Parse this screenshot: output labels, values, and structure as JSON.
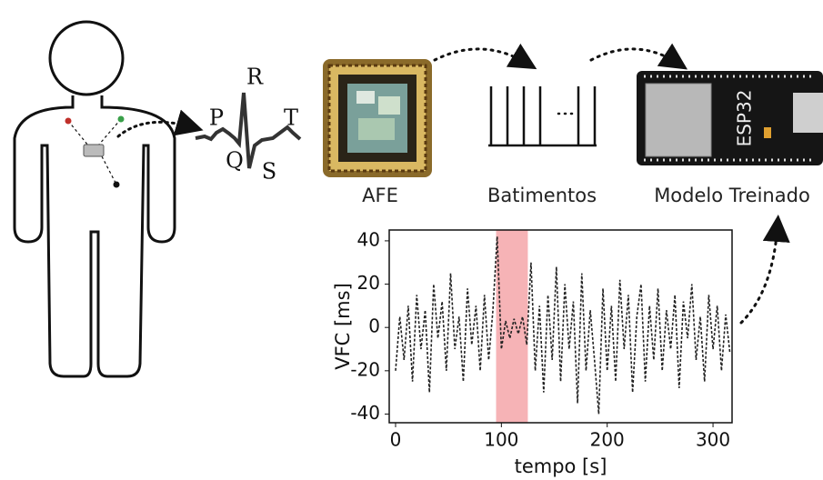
{
  "labels": {
    "afe": "AFE",
    "beats": "Batimentos",
    "model": "Modelo Treinado",
    "board": "ESP32"
  },
  "ecg_labels": {
    "r": "R",
    "p": "P",
    "q": "Q",
    "s": "S",
    "t": "T"
  },
  "chart_data": {
    "type": "line",
    "xlabel": "tempo [s]",
    "ylabel": "VFC [ms]",
    "x": [
      0,
      4,
      8,
      12,
      16,
      20,
      24,
      28,
      32,
      36,
      40,
      44,
      48,
      52,
      56,
      60,
      64,
      68,
      72,
      76,
      80,
      84,
      88,
      92,
      96,
      100,
      104,
      108,
      112,
      116,
      120,
      124,
      128,
      132,
      136,
      140,
      144,
      148,
      152,
      156,
      160,
      164,
      168,
      172,
      176,
      180,
      184,
      188,
      192,
      196,
      200,
      204,
      208,
      212,
      216,
      220,
      224,
      228,
      232,
      236,
      240,
      244,
      248,
      252,
      256,
      260,
      264,
      268,
      272,
      276,
      280,
      284,
      288,
      292,
      296,
      300,
      304,
      308,
      312,
      316
    ],
    "values": [
      -20,
      5,
      -15,
      10,
      -25,
      15,
      -10,
      8,
      -30,
      20,
      -5,
      12,
      -20,
      25,
      -10,
      5,
      -25,
      18,
      -8,
      10,
      -20,
      15,
      -15,
      8,
      42,
      -10,
      3,
      -5,
      4,
      -3,
      5,
      -8,
      30,
      -20,
      10,
      -30,
      15,
      -15,
      28,
      -25,
      20,
      -10,
      12,
      -35,
      25,
      -20,
      8,
      -15,
      -40,
      18,
      -20,
      10,
      -25,
      22,
      -10,
      15,
      -30,
      5,
      20,
      -25,
      10,
      -15,
      18,
      -20,
      8,
      -10,
      15,
      -28,
      12,
      -5,
      20,
      -15,
      5,
      -25,
      15,
      -10,
      10,
      -20,
      6,
      -12
    ],
    "color": "#222222",
    "highlight": [
      95,
      125
    ],
    "highlight_color": "#f4a0a4",
    "xlim": [
      -6,
      318
    ],
    "ylim": [
      -44,
      45
    ],
    "xticks": [
      0,
      100,
      200,
      300
    ],
    "yticks": [
      40,
      20,
      0,
      -20,
      -40
    ]
  }
}
